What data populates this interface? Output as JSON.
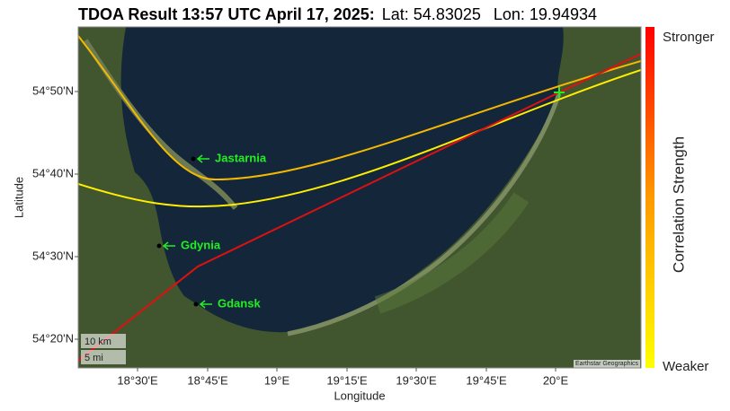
{
  "header": {
    "title": "TDOA Result 13:57 UTC April 17, 2025:",
    "lat": "Lat: 54.83025",
    "lon": "Lon: 19.94934"
  },
  "map": {
    "x_axis": {
      "label": "Longitude",
      "ticks": [
        "18°30'E",
        "18°45'E",
        "19°E",
        "19°15'E",
        "19°30'E",
        "19°45'E",
        "20°E"
      ]
    },
    "y_axis": {
      "label": "Latitude",
      "ticks": [
        "54°50'N",
        "54°40'N",
        "54°30'N",
        "54°20'N"
      ]
    },
    "cities": [
      {
        "label": "Jastarnia"
      },
      {
        "label": "Gdynia"
      },
      {
        "label": "Gdansk"
      }
    ],
    "scale": [
      "10 km",
      "5 mi"
    ],
    "attribution": "Earthstar Geographics"
  },
  "colorbar": {
    "label": "Correlation Strength",
    "top": "Stronger",
    "bottom": "Weaker"
  }
}
